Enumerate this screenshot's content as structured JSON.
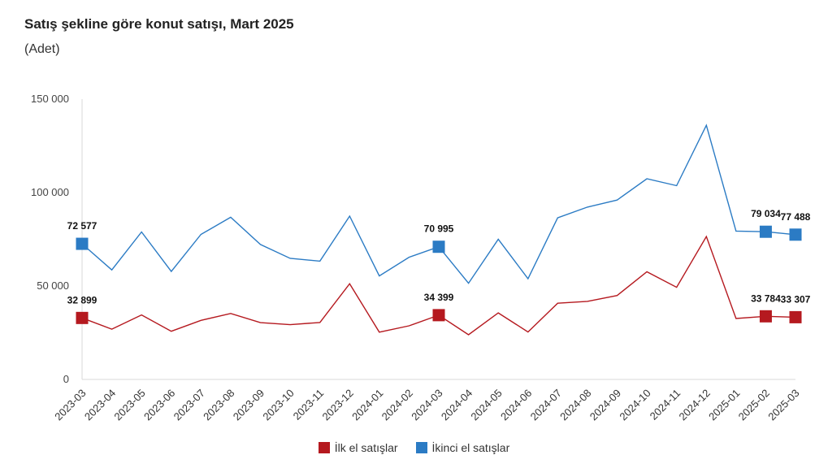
{
  "chart_data": {
    "type": "line",
    "title": "Satış şekline göre konut satışı, Mart 2025",
    "subtitle": "(Adet)",
    "x": [
      "2023-03",
      "2023-04",
      "2023-05",
      "2023-06",
      "2023-07",
      "2023-08",
      "2023-09",
      "2023-10",
      "2023-11",
      "2023-12",
      "2024-01",
      "2024-02",
      "2024-03",
      "2024-04",
      "2024-05",
      "2024-06",
      "2024-07",
      "2024-08",
      "2024-09",
      "2024-10",
      "2024-11",
      "2024-12",
      "2025-01",
      "2025-02",
      "2025-03"
    ],
    "ylim": [
      0,
      150000
    ],
    "yticks": [
      0,
      50000,
      100000,
      150000
    ],
    "ytick_labels": [
      "0",
      "50 000",
      "100 000",
      "150 000"
    ],
    "legend_position": "bottom",
    "series": [
      {
        "name": "İlk el satışlar",
        "color": "#b5191f",
        "values": [
          32899,
          26900,
          34500,
          25800,
          31600,
          35300,
          30400,
          29300,
          30500,
          51200,
          25300,
          28700,
          34399,
          23900,
          35600,
          25400,
          40800,
          41800,
          44900,
          57600,
          49300,
          76500,
          32600,
          33784,
          33307
        ],
        "markers": [
          0,
          12,
          23,
          24
        ],
        "labels": [
          "32 899",
          "34 399",
          "33 784",
          "33 307"
        ]
      },
      {
        "name": "İkinci el satışlar",
        "color": "#2b7bc4",
        "values": [
          72577,
          58600,
          78900,
          57800,
          77600,
          86800,
          72200,
          64800,
          63300,
          87400,
          55400,
          65400,
          70995,
          51500,
          75000,
          53900,
          86500,
          92200,
          96000,
          107400,
          103700,
          136000,
          79400,
          79034,
          77488
        ],
        "markers": [
          0,
          12,
          23,
          24
        ],
        "labels": [
          "72 577",
          "70 995",
          "79 034",
          "77 488"
        ]
      }
    ]
  }
}
